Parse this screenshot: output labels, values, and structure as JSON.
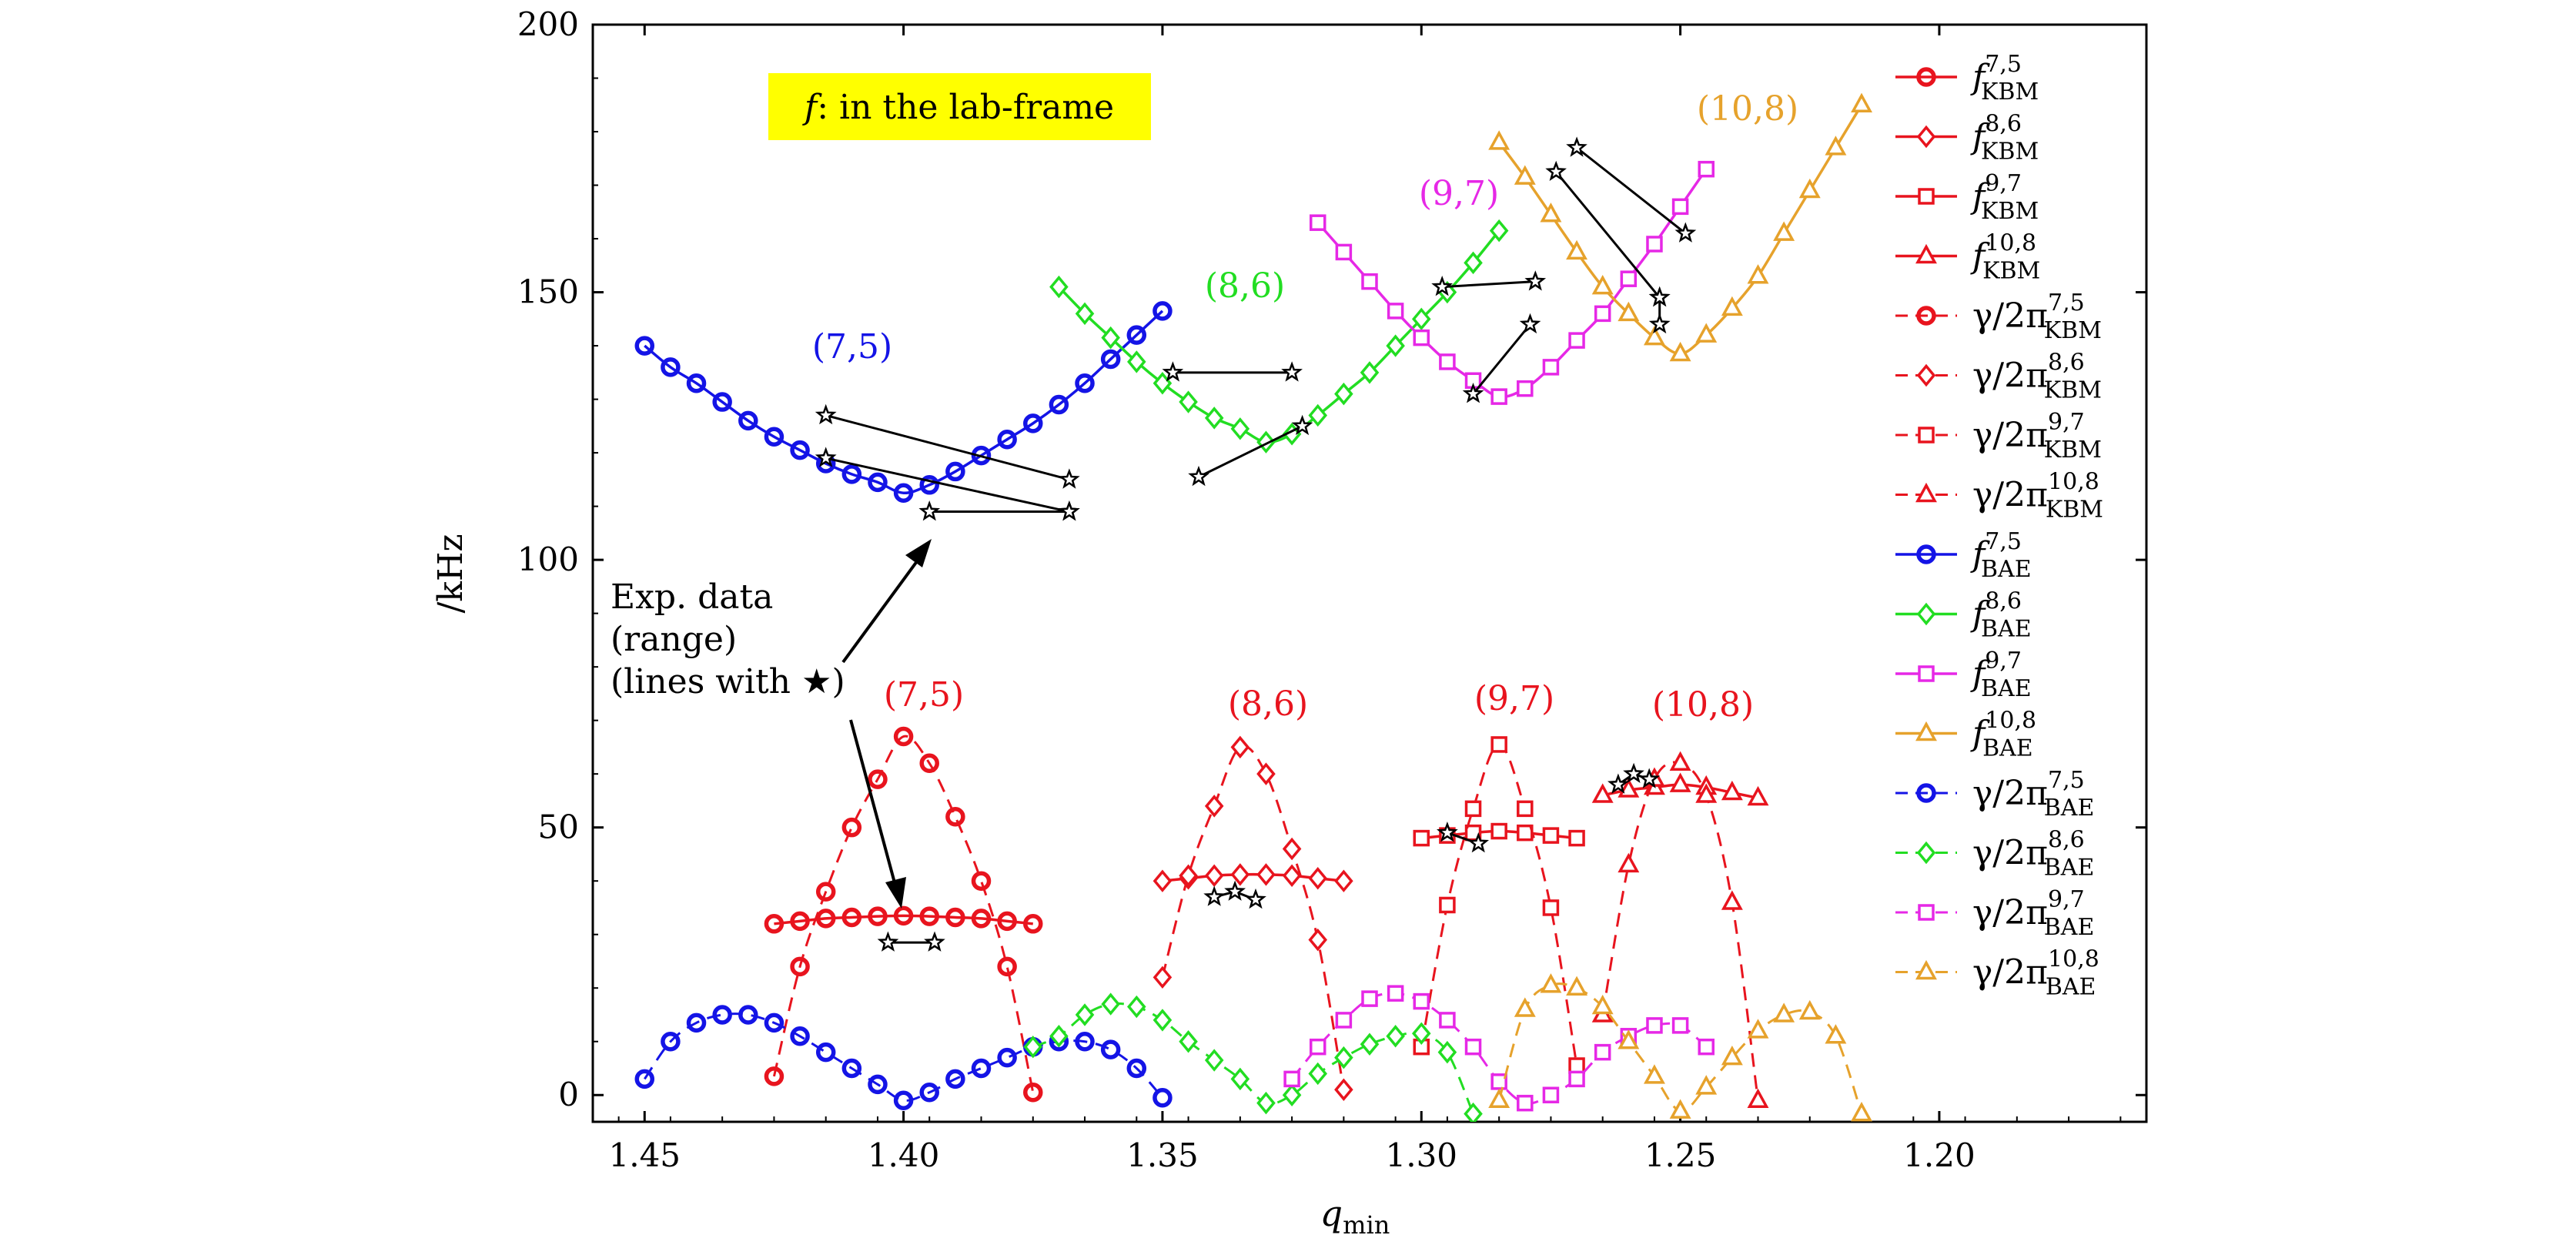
{
  "chart_data": {
    "type": "line",
    "xlabel": "q_min",
    "ylabel": "/kHz",
    "xlim": [
      1.46,
      1.16
    ],
    "ylim": [
      -5,
      200
    ],
    "x_ticks": [
      "1.45",
      "1.40",
      "1.35",
      "1.30",
      "1.25",
      "1.20"
    ],
    "y_ticks": [
      "0",
      "50",
      "100",
      "150",
      "200"
    ],
    "grid": false,
    "legend_placement": "right outside",
    "annotations": {
      "frame_box": "f: in the lab-frame",
      "exp_label": [
        "Exp. data",
        "(range)",
        "(lines with ★)"
      ],
      "upper_labels": [
        "(7,5)",
        "(8,6)",
        "(9,7)",
        "(10,8)"
      ],
      "lower_labels": [
        "(7,5)",
        "(8,6)",
        "(9,7)",
        "(10,8)"
      ]
    },
    "colors": {
      "KBM": "#e8141e",
      "n7_5": "#1414e6",
      "n8_6": "#22dd22",
      "n9_7": "#e628e6",
      "n10_8": "#e6a22c",
      "exp": "#000000",
      "frame_box": "#ffff00"
    },
    "series": [
      {
        "name": "f_KBM^{7,5}",
        "marker": "circle",
        "style": "solid",
        "color": "#e8141e",
        "x": [
          1.425,
          1.42,
          1.415,
          1.41,
          1.405,
          1.4,
          1.395,
          1.39,
          1.385,
          1.38,
          1.375
        ],
        "y": [
          32,
          32.5,
          33,
          33.2,
          33.4,
          33.5,
          33.4,
          33.2,
          33,
          32.5,
          32
        ]
      },
      {
        "name": "f_KBM^{8,6}",
        "marker": "diamond",
        "style": "solid",
        "color": "#e8141e",
        "x": [
          1.35,
          1.345,
          1.34,
          1.335,
          1.33,
          1.325,
          1.32,
          1.315
        ],
        "y": [
          40,
          40.5,
          41,
          41.2,
          41.2,
          41,
          40.5,
          40
        ]
      },
      {
        "name": "f_KBM^{9,7}",
        "marker": "square",
        "style": "solid",
        "color": "#e8141e",
        "x": [
          1.3,
          1.295,
          1.29,
          1.285,
          1.28,
          1.275,
          1.27
        ],
        "y": [
          48,
          48.5,
          49,
          49.3,
          49,
          48.5,
          48
        ]
      },
      {
        "name": "f_KBM^{10,8}",
        "marker": "triangle",
        "style": "solid",
        "color": "#e8141e",
        "x": [
          1.265,
          1.26,
          1.255,
          1.25,
          1.245,
          1.24,
          1.235
        ],
        "y": [
          56,
          57,
          57.5,
          58,
          57.5,
          56.5,
          55.5
        ]
      },
      {
        "name": "γ/2π_KBM^{7,5}",
        "marker": "circle",
        "style": "dashed",
        "color": "#e8141e",
        "x": [
          1.425,
          1.42,
          1.415,
          1.41,
          1.405,
          1.4,
          1.395,
          1.39,
          1.385,
          1.38,
          1.375
        ],
        "y": [
          3.5,
          24,
          38,
          50,
          59,
          67,
          62,
          52,
          40,
          24,
          0.5
        ]
      },
      {
        "name": "γ/2π_KBM^{8,6}",
        "marker": "diamond",
        "style": "dashed",
        "color": "#e8141e",
        "x": [
          1.35,
          1.345,
          1.34,
          1.335,
          1.33,
          1.325,
          1.32,
          1.315
        ],
        "y": [
          22,
          41,
          54,
          65,
          60,
          46,
          29,
          1
        ]
      },
      {
        "name": "γ/2π_KBM^{9,7}",
        "marker": "square",
        "style": "dashed",
        "color": "#e8141e",
        "x": [
          1.3,
          1.295,
          1.29,
          1.285,
          1.28,
          1.275,
          1.27
        ],
        "y": [
          9,
          35.5,
          53.5,
          65.5,
          53.5,
          35,
          5.5
        ]
      },
      {
        "name": "γ/2π_KBM^{10,8}",
        "marker": "triangle",
        "style": "dashed",
        "color": "#e8141e",
        "x": [
          1.265,
          1.26,
          1.255,
          1.25,
          1.245,
          1.24,
          1.235
        ],
        "y": [
          15,
          43,
          59,
          62,
          56,
          36,
          -1
        ]
      },
      {
        "name": "f_BAE^{7,5}",
        "marker": "circle",
        "style": "solid",
        "color": "#1414e6",
        "x": [
          1.45,
          1.445,
          1.44,
          1.435,
          1.43,
          1.425,
          1.42,
          1.415,
          1.41,
          1.405,
          1.4,
          1.395,
          1.39,
          1.385,
          1.38,
          1.375,
          1.37,
          1.365,
          1.36,
          1.355,
          1.35
        ],
        "y": [
          140,
          136,
          133,
          129.5,
          126,
          123,
          120.5,
          118,
          116,
          114.5,
          112.5,
          114,
          116.5,
          119.5,
          122.5,
          125.5,
          129,
          133,
          137.5,
          142,
          146.5
        ]
      },
      {
        "name": "f_BAE^{8,6}",
        "marker": "diamond",
        "style": "solid",
        "color": "#22dd22",
        "x": [
          1.37,
          1.365,
          1.36,
          1.355,
          1.35,
          1.345,
          1.34,
          1.335,
          1.33,
          1.325,
          1.32,
          1.315,
          1.31,
          1.305,
          1.3,
          1.295,
          1.29,
          1.285
        ],
        "y": [
          151,
          146,
          141.5,
          137,
          133,
          129.5,
          126.5,
          124.5,
          122,
          123.5,
          127,
          131,
          135,
          140,
          145,
          150,
          155.5,
          161.5
        ]
      },
      {
        "name": "f_BAE^{9,7}",
        "marker": "square",
        "style": "solid",
        "color": "#e628e6",
        "x": [
          1.32,
          1.315,
          1.31,
          1.305,
          1.3,
          1.295,
          1.29,
          1.285,
          1.28,
          1.275,
          1.27,
          1.265,
          1.26,
          1.255,
          1.25,
          1.245
        ],
        "y": [
          163,
          157.5,
          152,
          146.5,
          141.5,
          137,
          133.5,
          130.5,
          132,
          136,
          141,
          146,
          152.5,
          159,
          166,
          173
        ]
      },
      {
        "name": "f_BAE^{10,8}",
        "marker": "triangle",
        "style": "solid",
        "color": "#e6a22c",
        "x": [
          1.285,
          1.28,
          1.275,
          1.27,
          1.265,
          1.26,
          1.255,
          1.25,
          1.245,
          1.24,
          1.235,
          1.23,
          1.225,
          1.22,
          1.215
        ],
        "y": [
          178,
          171.5,
          164.5,
          157.5,
          151,
          146,
          141.5,
          138.5,
          142,
          147,
          153,
          161,
          169,
          177,
          185
        ]
      },
      {
        "name": "γ/2π_BAE^{7,5}",
        "marker": "circle",
        "style": "dashed",
        "color": "#1414e6",
        "x": [
          1.45,
          1.445,
          1.44,
          1.435,
          1.43,
          1.425,
          1.42,
          1.415,
          1.41,
          1.405,
          1.4,
          1.395,
          1.39,
          1.385,
          1.38,
          1.375,
          1.37,
          1.365,
          1.36,
          1.355,
          1.35
        ],
        "y": [
          3,
          10,
          13.5,
          15,
          15,
          13.5,
          11,
          8,
          5,
          2,
          -1,
          0.5,
          3,
          5,
          7,
          9,
          10,
          10,
          8.5,
          5,
          -0.5
        ]
      },
      {
        "name": "γ/2π_BAE^{8,6}",
        "marker": "diamond",
        "style": "dashed",
        "color": "#22dd22",
        "x": [
          1.375,
          1.37,
          1.365,
          1.36,
          1.355,
          1.35,
          1.345,
          1.34,
          1.335,
          1.33,
          1.325,
          1.32,
          1.315,
          1.31,
          1.305,
          1.3,
          1.295,
          1.29
        ],
        "y": [
          9,
          11,
          15,
          17,
          16.5,
          14,
          10,
          6.5,
          3,
          -1.5,
          0,
          4,
          7,
          9.5,
          11,
          11.5,
          8,
          -3.5
        ]
      },
      {
        "name": "γ/2π_BAE^{9,7}",
        "marker": "square",
        "style": "dashed",
        "color": "#e628e6",
        "x": [
          1.325,
          1.32,
          1.315,
          1.31,
          1.305,
          1.3,
          1.295,
          1.29,
          1.285,
          1.28,
          1.275,
          1.27,
          1.265,
          1.26,
          1.255,
          1.25,
          1.245
        ],
        "y": [
          3,
          9,
          14,
          18,
          19,
          17.5,
          14,
          9,
          2.5,
          -1.5,
          0,
          3,
          8,
          11,
          13,
          13,
          9
        ]
      },
      {
        "name": "γ/2π_BAE^{10,8}",
        "marker": "triangle",
        "style": "dashed",
        "color": "#e6a22c",
        "x": [
          1.285,
          1.28,
          1.275,
          1.27,
          1.265,
          1.26,
          1.255,
          1.25,
          1.245,
          1.24,
          1.235,
          1.23,
          1.225,
          1.22,
          1.215
        ],
        "y": [
          -1,
          16,
          20.5,
          20,
          16.5,
          10,
          3.5,
          -3,
          1.5,
          7,
          12,
          15,
          15.5,
          11,
          -3.5
        ]
      }
    ],
    "experimental_data": [
      {
        "x": [
          1.415,
          1.368
        ],
        "y": [
          127,
          115
        ]
      },
      {
        "x": [
          1.415,
          1.368
        ],
        "y": [
          119,
          109
        ]
      },
      {
        "x": [
          1.395,
          1.368
        ],
        "y": [
          109,
          109
        ]
      },
      {
        "x": [
          1.348,
          1.325
        ],
        "y": [
          135,
          135
        ]
      },
      {
        "x": [
          1.343,
          1.323
        ],
        "y": [
          115.5,
          125
        ]
      },
      {
        "x": [
          1.296,
          1.278
        ],
        "y": [
          151,
          152
        ]
      },
      {
        "x": [
          1.29,
          1.279
        ],
        "y": [
          131,
          144
        ]
      },
      {
        "x": [
          1.27,
          1.249
        ],
        "y": [
          177,
          161
        ]
      },
      {
        "x": [
          1.274,
          1.254
        ],
        "y": [
          172.5,
          149
        ]
      },
      {
        "x": [
          1.254,
          1.254
        ],
        "y": [
          149,
          144
        ]
      },
      {
        "x": [
          1.403,
          1.394
        ],
        "y": [
          28.5,
          28.5
        ]
      },
      {
        "x": [
          1.34,
          1.336,
          1.332
        ],
        "y": [
          37,
          38,
          36.5
        ]
      },
      {
        "x": [
          1.295,
          1.289
        ],
        "y": [
          49,
          47
        ]
      },
      {
        "x": [
          1.262,
          1.259,
          1.256
        ],
        "y": [
          58,
          60,
          59
        ]
      }
    ]
  },
  "legend": [
    {
      "label": "f",
      "sub": "KBM",
      "sup": "7,5"
    },
    {
      "label": "f",
      "sub": "KBM",
      "sup": "8,6"
    },
    {
      "label": "f",
      "sub": "KBM",
      "sup": "9,7"
    },
    {
      "label": "f",
      "sub": "KBM",
      "sup": "10,8"
    },
    {
      "label": "γ/2π",
      "sub": "KBM",
      "sup": "7,5"
    },
    {
      "label": "γ/2π",
      "sub": "KBM",
      "sup": "8,6"
    },
    {
      "label": "γ/2π",
      "sub": "KBM",
      "sup": "9,7"
    },
    {
      "label": "γ/2π",
      "sub": "KBM",
      "sup": "10,8"
    },
    {
      "label": "f",
      "sub": "BAE",
      "sup": "7,5"
    },
    {
      "label": "f",
      "sub": "BAE",
      "sup": "8,6"
    },
    {
      "label": "f",
      "sub": "BAE",
      "sup": "9,7"
    },
    {
      "label": "f",
      "sub": "BAE",
      "sup": "10,8"
    },
    {
      "label": "γ/2π",
      "sub": "BAE",
      "sup": "7,5"
    },
    {
      "label": "γ/2π",
      "sub": "BAE",
      "sup": "8,6"
    },
    {
      "label": "γ/2π",
      "sub": "BAE",
      "sup": "9,7"
    },
    {
      "label": "γ/2π",
      "sub": "BAE",
      "sup": "10,8"
    }
  ]
}
